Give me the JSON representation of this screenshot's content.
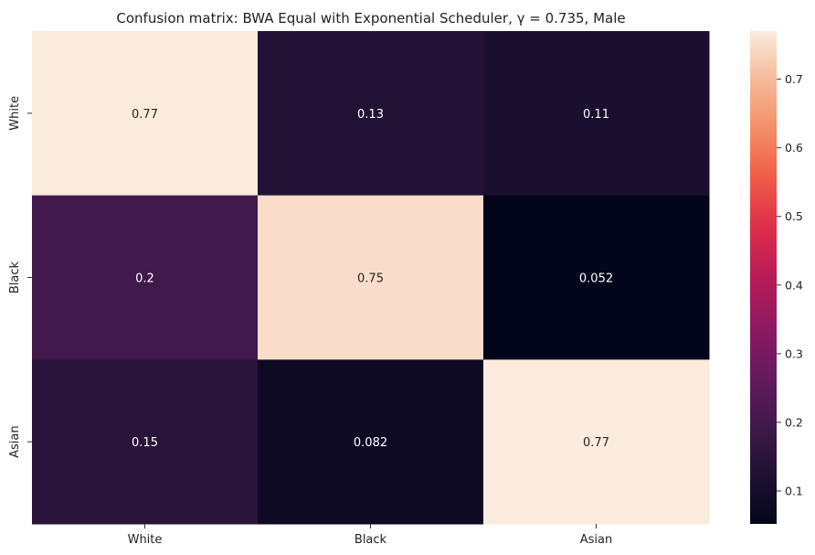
{
  "chart_data": {
    "type": "heatmap",
    "title": "Confusion matrix: BWA Equal with Exponential Scheduler, γ = 0.735, Male",
    "x_categories": [
      "White",
      "Black",
      "Asian"
    ],
    "y_categories": [
      "White",
      "Black",
      "Asian"
    ],
    "values": [
      [
        0.77,
        0.13,
        0.11
      ],
      [
        0.2,
        0.75,
        0.052
      ],
      [
        0.15,
        0.082,
        0.77
      ]
    ],
    "labels": [
      [
        "0.77",
        "0.13",
        "0.11"
      ],
      [
        "0.2",
        "0.75",
        "0.052"
      ],
      [
        "0.15",
        "0.082",
        "0.77"
      ]
    ],
    "colorbar": {
      "min": 0.052,
      "max": 0.77,
      "ticks": [
        "0.1",
        "0.2",
        "0.3",
        "0.4",
        "0.5",
        "0.6",
        "0.7"
      ],
      "tick_values": [
        0.1,
        0.2,
        0.3,
        0.4,
        0.5,
        0.6,
        0.7
      ],
      "colormap": "rocket"
    }
  }
}
